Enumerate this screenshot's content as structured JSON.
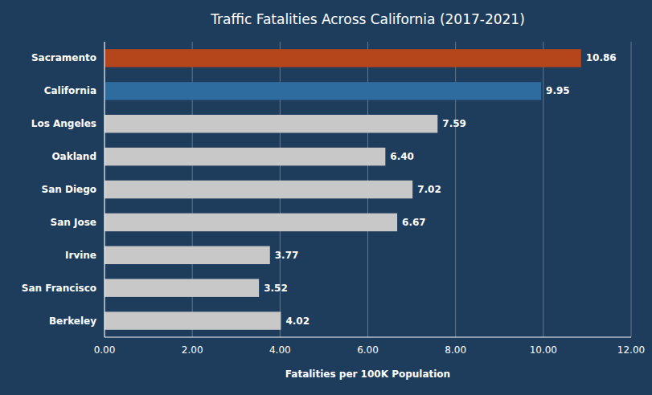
{
  "chart_data": {
    "type": "bar",
    "orientation": "horizontal",
    "title": "Traffic Fatalities Across California (2017-2021)",
    "xlabel": "Fatalities per 100K Population",
    "categories": [
      "Sacramento",
      "California",
      "Los Angeles",
      "Oakland",
      "San Diego",
      "San Jose",
      "Irvine",
      "San Francisco",
      "Berkeley"
    ],
    "values": [
      10.86,
      9.95,
      7.59,
      6.4,
      7.02,
      6.67,
      3.77,
      3.52,
      4.02
    ],
    "value_labels": [
      "10.86",
      "9.95",
      "7.59",
      "6.40",
      "7.02",
      "6.67",
      "3.77",
      "3.52",
      "4.02"
    ],
    "colors": [
      "#b5451b",
      "#2e6b9e",
      "#c8c8c8",
      "#c8c8c8",
      "#c8c8c8",
      "#c8c8c8",
      "#c8c8c8",
      "#c8c8c8",
      "#c8c8c8"
    ],
    "xlim": [
      0,
      12
    ],
    "xticks": [
      {
        "value": 0,
        "label": "0.00"
      },
      {
        "value": 2,
        "label": "2.00"
      },
      {
        "value": 4,
        "label": "4.00"
      },
      {
        "value": 6,
        "label": "6.00"
      },
      {
        "value": 8,
        "label": "8.00"
      },
      {
        "value": 10,
        "label": "10.00"
      },
      {
        "value": 12,
        "label": "12.00"
      }
    ],
    "grid": true,
    "data_labels": true
  }
}
